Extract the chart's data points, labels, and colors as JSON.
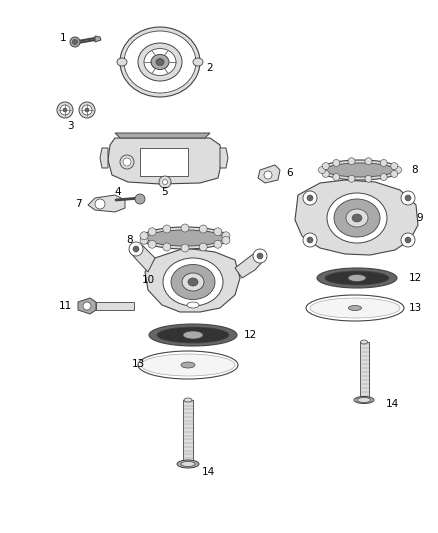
{
  "background_color": "#ffffff",
  "fig_width": 4.38,
  "fig_height": 5.33,
  "dpi": 100,
  "line_color": "#444444",
  "fill_light": "#dddddd",
  "fill_mid": "#aaaaaa",
  "fill_dark": "#666666",
  "fill_white": "#ffffff"
}
